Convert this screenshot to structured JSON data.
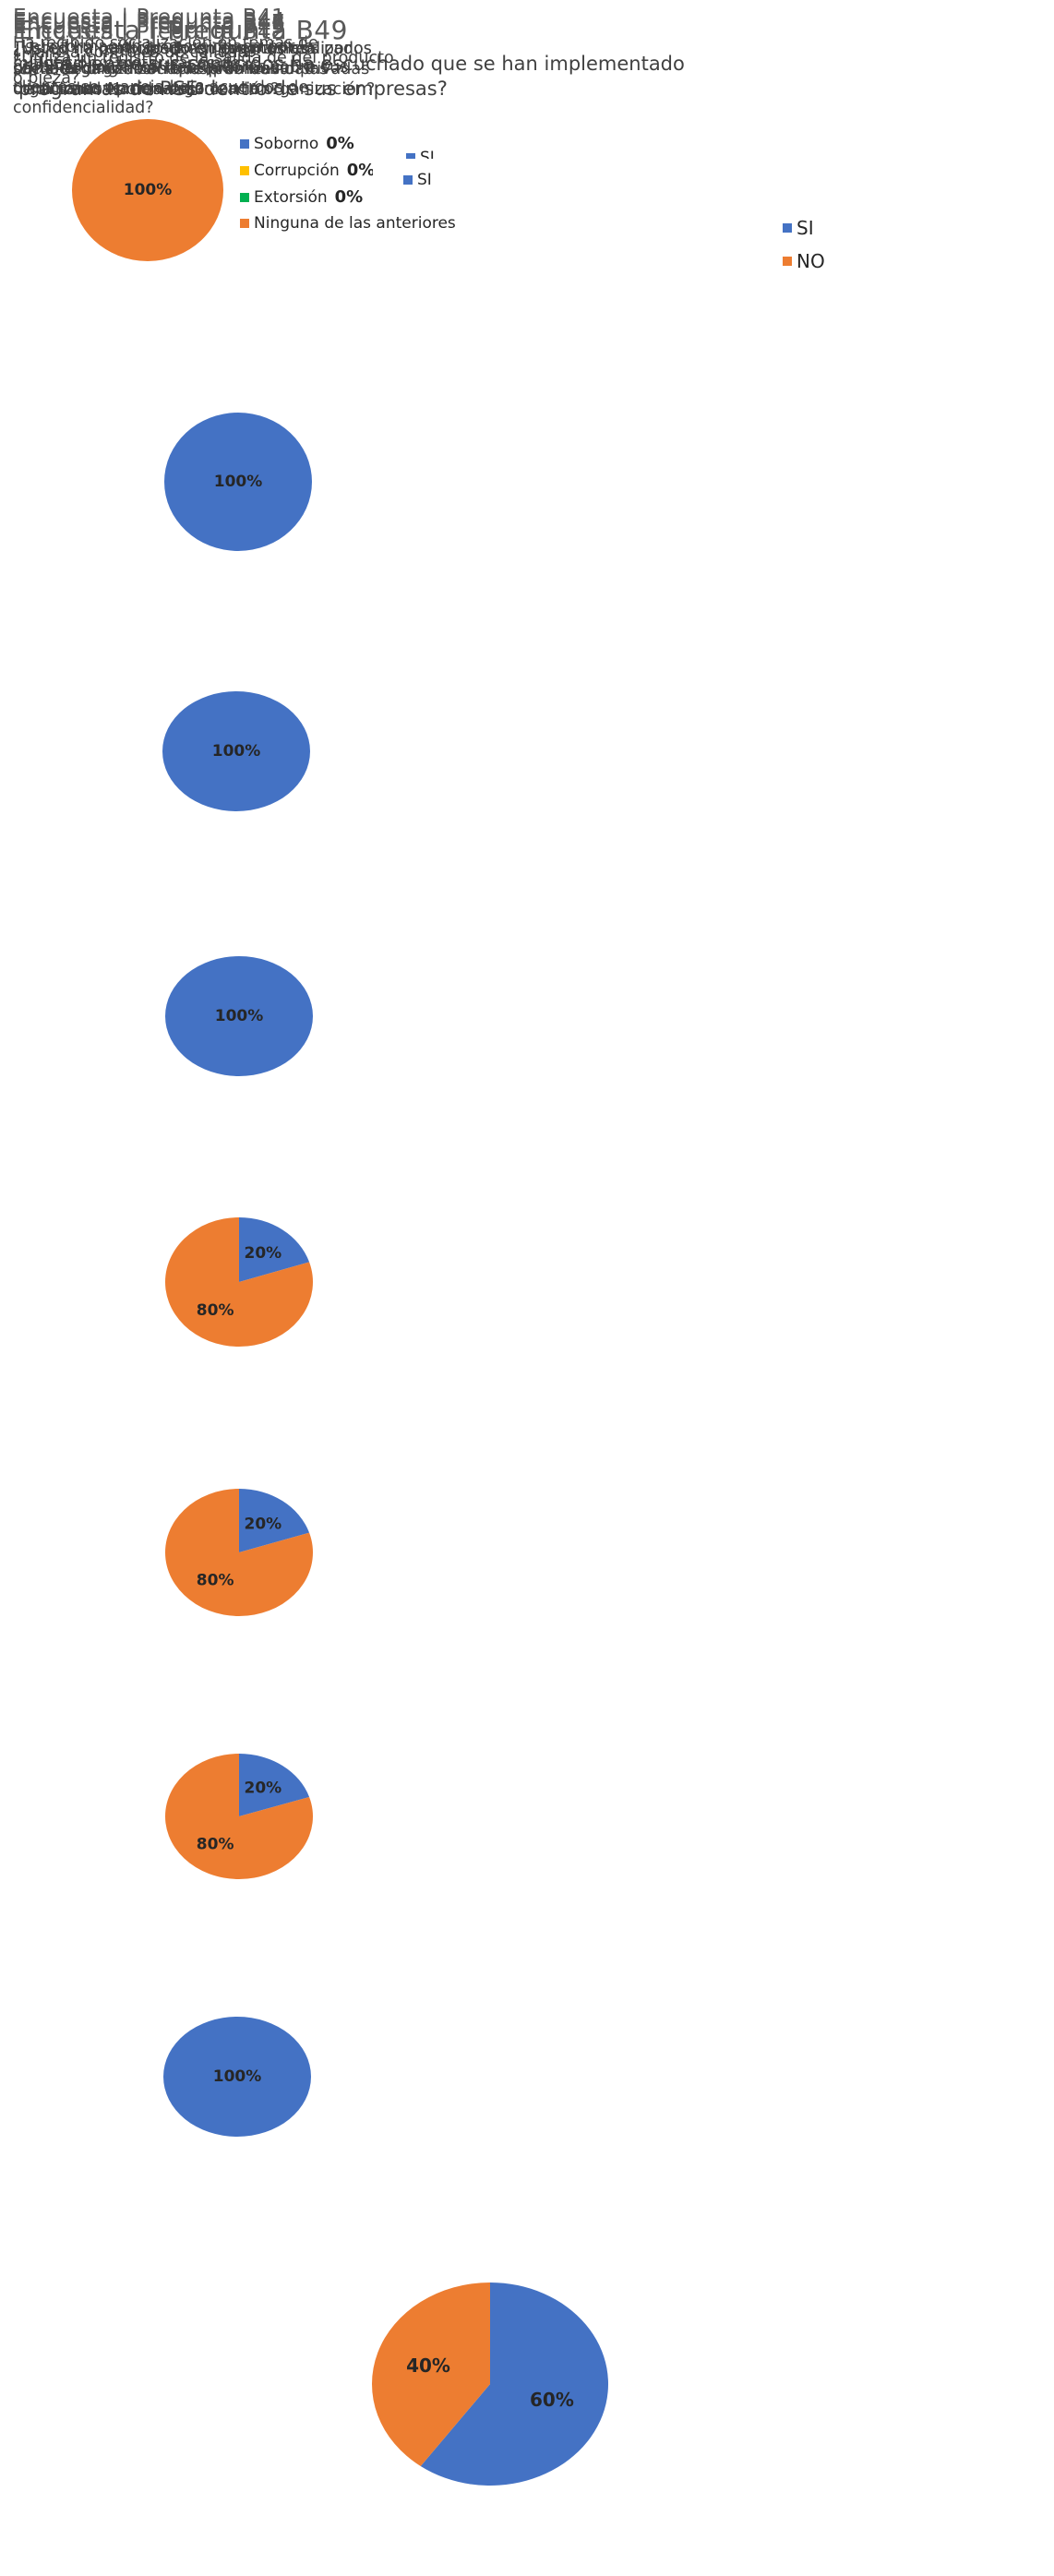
{
  "chart_data": [
    {
      "type": "pie",
      "title": "Encuesta | Pregunta B41",
      "subtitle": "Ha recibido socialización en temas de mitigación y evitar casos de:",
      "categories": [
        "Soborno",
        "Corrupción",
        "Extorsión",
        "Ninguna de las anteriores"
      ],
      "values": [
        0,
        0,
        0,
        100
      ],
      "value_labels": [
        "0%",
        "0%",
        "0%",
        "100%"
      ],
      "colors": [
        "#4472c4",
        "#ffc000",
        "#00b050",
        "#ed7d31"
      ]
    },
    {
      "type": "pie",
      "title": "Encuesta | Pregunta B42",
      "subtitle": "¿Utiliza un registro de la salida de del producto o pieza?",
      "categories": [
        "SI"
      ],
      "values": [
        100
      ],
      "value_labels": [
        "100%"
      ],
      "colors": [
        "#4472c4"
      ]
    },
    {
      "type": "pie",
      "title": "Encuesta | Pregunta B43",
      "subtitle": "¿Maneja controles de calidad?",
      "categories": [
        "SI"
      ],
      "values": [
        100
      ],
      "value_labels": [
        "100%"
      ],
      "colors": [
        "#4472c4"
      ]
    },
    {
      "type": "pie",
      "title": "Encuesta | Pregunta B44",
      "subtitle": "¿La información proporcionada por la organización a los trabajadores sobre sus clientes se maneja bajo acuerdos de confidencialidad?",
      "categories": [
        "SI"
      ],
      "values": [
        100
      ],
      "value_labels": [
        "100%"
      ],
      "colors": [
        "#4472c4"
      ]
    },
    {
      "type": "pie",
      "title": "Encuesta | Pregunta B45",
      "subtitle": "¿Usted ha participado en programas sociales dirigidos hacia la comunidad organizados por la organización?",
      "categories": [
        "SI",
        "NO"
      ],
      "values": [
        20,
        80
      ],
      "value_labels": [
        "20%",
        "80%"
      ],
      "colors": [
        "#4472c4",
        "#ed7d31"
      ]
    },
    {
      "type": "pie",
      "title": "Encuesta | Pregunta B46",
      "subtitle": "¿Usted ha participado en eventos realizados por la organización que promuevan las tradiciones Nacionales?",
      "categories": [
        "SI",
        "NO"
      ],
      "values": [
        20,
        80
      ],
      "value_labels": [
        "20%",
        "80%"
      ],
      "colors": [
        "#4472c4",
        "#ed7d31"
      ]
    },
    {
      "type": "pie",
      "title": "Encuesta | Pregunta B47",
      "subtitle": "¿Usted ha participado en eventos realizados por la organización que promuevan las tradiciones Nacionales?",
      "categories": [
        "SI",
        "NO"
      ],
      "values": [
        20,
        80
      ],
      "value_labels": [
        "20%",
        "80%"
      ],
      "colors": [
        "#4472c4",
        "#ed7d31"
      ]
    },
    {
      "type": "pie",
      "title": "Encuesta | Pregunta B48",
      "subtitle": "¿Usted ha recibido chequeos médicos por parte de organizaciones públicas o privadas de la salud en convenio con la organización?",
      "categories": [
        "SI"
      ],
      "values": [
        100
      ],
      "value_labels": [
        "100%"
      ],
      "colors": [
        "#4472c4"
      ]
    },
    {
      "type": "pie",
      "title": "Encuesta | Pregunta B49",
      "subtitle": "¿Usted entre sus conocidos ha escuchado que se han implementado programas de RSE dentro de sus empresas?",
      "categories": [
        "SI",
        "NO"
      ],
      "values": [
        60,
        40
      ],
      "value_labels": [
        "60%",
        "40%"
      ],
      "colors": [
        "#4472c4",
        "#ed7d31"
      ]
    }
  ]
}
